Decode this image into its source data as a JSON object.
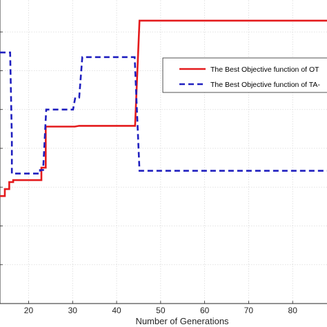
{
  "chart_data": {
    "type": "line",
    "xlabel": "Number of Generations",
    "ylabel": "",
    "title": "",
    "xlim": [
      13.5,
      90
    ],
    "ylim": [
      0,
      8
    ],
    "xticks": [
      20,
      30,
      40,
      50,
      60,
      70,
      80
    ],
    "xtick_labels": [
      "20",
      "30",
      "40",
      "50",
      "60",
      "70",
      "80"
    ],
    "grid": true,
    "legend_position": "top-right",
    "series": [
      {
        "name": "The Best Objective function of OT",
        "color": "#e41a1c",
        "style": "solid",
        "x": [
          13.5,
          14.6,
          14.6,
          15.6,
          15.6,
          16.5,
          16.5,
          22.9,
          22.9,
          23.9,
          23.9,
          30.5,
          31.5,
          44.2,
          45.2,
          90
        ],
        "y": [
          2.77,
          2.77,
          2.95,
          2.95,
          3.13,
          3.13,
          3.18,
          3.18,
          3.5,
          3.5,
          4.56,
          4.56,
          4.58,
          4.58,
          7.29,
          7.29
        ]
      },
      {
        "name": "The Best Objective function of TA-",
        "color": "#1f1fbf",
        "style": "dashed",
        "x": [
          13.5,
          15.1,
          15.8,
          16.2,
          16.2,
          22.6,
          22.6,
          23.3,
          24.0,
          30.1,
          30.6,
          31.5,
          32.2,
          44.1,
          45.2,
          90
        ],
        "y": [
          6.47,
          6.47,
          6.47,
          4.25,
          3.35,
          3.35,
          3.44,
          3.44,
          5.0,
          5.0,
          5.31,
          5.31,
          6.35,
          6.35,
          3.42,
          3.42
        ]
      }
    ]
  }
}
